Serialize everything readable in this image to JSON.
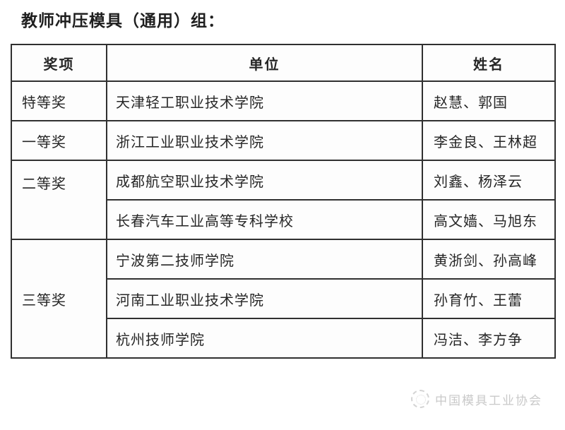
{
  "page": {
    "title": "教师冲压模具（通用）组："
  },
  "table": {
    "headers": [
      "奖项",
      "单位",
      "姓名"
    ],
    "groups": [
      {
        "award": "特等奖",
        "rows": [
          {
            "unit": "天津轻工职业技术学院",
            "names": "赵慧、郭国"
          }
        ]
      },
      {
        "award": "一等奖",
        "rows": [
          {
            "unit": "浙江工业职业技术学院",
            "names": "李金良、王林超"
          }
        ]
      },
      {
        "award": "二等奖",
        "rows": [
          {
            "unit": "成都航空职业技术学院",
            "names": "刘鑫、杨泽云"
          },
          {
            "unit": "长春汽车工业高等专科学校",
            "names": "高文嫱、马旭东"
          }
        ]
      },
      {
        "award": "三等奖",
        "rows": [
          {
            "unit": "宁波第二技师学院",
            "names": "黄浙剑、孙高峰"
          },
          {
            "unit": "河南工业职业技术学院",
            "names": "孙育竹、王蕾"
          },
          {
            "unit": "杭州技师学院",
            "names": "冯洁、李方争"
          }
        ]
      }
    ]
  },
  "watermark": {
    "logo_icon": "association-emblem",
    "text": "中国模具工业协会"
  },
  "colors": {
    "border": "#303030",
    "text": "#262626",
    "watermark": "#c9c9c9",
    "background": "#ffffff"
  }
}
